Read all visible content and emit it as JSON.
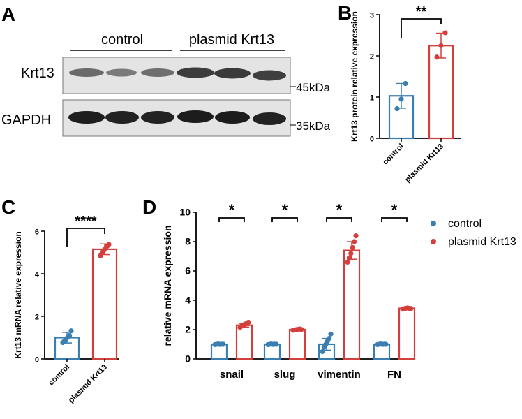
{
  "colors": {
    "control": "#3a7fb0",
    "plasmid": "#d33f3c",
    "axis": "#000000",
    "blot_bg": "#e4e4e4"
  },
  "panels": {
    "A": {
      "letter": "A"
    },
    "B": {
      "letter": "B"
    },
    "C": {
      "letter": "C"
    },
    "D": {
      "letter": "D"
    }
  },
  "western": {
    "group_labels": [
      "control",
      "plasmid Krt13"
    ],
    "rows": [
      {
        "label": "Krt13",
        "marker": "45kDa"
      },
      {
        "label": "GAPDH",
        "marker": "35kDa"
      }
    ]
  },
  "chart_data": [
    {
      "panel": "B",
      "type": "bar",
      "categories": [
        "control",
        "plasmid Krt13"
      ],
      "values": [
        1.03,
        2.25
      ],
      "sd": [
        0.3,
        0.3
      ],
      "points": [
        [
          0.72,
          0.95,
          1.33
        ],
        [
          1.97,
          2.25,
          2.56
        ]
      ],
      "ylabel": "Krt13 protein relative expression",
      "ylim": [
        0,
        3
      ],
      "yticks": [
        "0",
        "1",
        "2",
        "3"
      ],
      "significance": "**",
      "grid": false
    },
    {
      "panel": "C",
      "type": "bar",
      "categories": [
        "control",
        "plasmid Krt13"
      ],
      "values": [
        1.0,
        5.15
      ],
      "sd": [
        0.25,
        0.25
      ],
      "points": [
        [
          0.77,
          0.85,
          0.95,
          1.02,
          1.1,
          1.32
        ],
        [
          4.85,
          5.0,
          5.1,
          5.2,
          5.3,
          5.38
        ]
      ],
      "ylabel": "Krt13 mRNA relative expression",
      "ylim": [
        0,
        6
      ],
      "yticks": [
        "0",
        "2",
        "4",
        "6"
      ],
      "significance": "****",
      "grid": false
    },
    {
      "panel": "D",
      "type": "bar",
      "categories": [
        "snail",
        "slug",
        "vimentin",
        "FN"
      ],
      "series": [
        {
          "name": "control",
          "values": [
            1.0,
            1.0,
            1.0,
            1.0
          ],
          "sd": [
            0.05,
            0.05,
            0.4,
            0.05
          ],
          "points": [
            [
              0.98,
              1.0,
              1.02,
              0.99,
              1.01,
              1.0
            ],
            [
              0.98,
              1.0,
              1.02,
              0.99,
              1.01,
              1.0
            ],
            [
              0.5,
              0.8,
              1.0,
              1.2,
              1.4,
              1.7
            ],
            [
              0.98,
              1.0,
              1.02,
              0.99,
              1.01,
              1.0
            ]
          ]
        },
        {
          "name": "plasmid Krt13",
          "values": [
            2.3,
            2.0,
            7.4,
            3.45
          ],
          "sd": [
            0.12,
            0.05,
            0.6,
            0.05
          ],
          "points": [
            [
              2.15,
              2.25,
              2.32,
              2.38,
              2.42,
              2.5
            ],
            [
              1.96,
              1.98,
              2.0,
              2.02,
              2.04,
              2.01
            ],
            [
              6.6,
              6.9,
              7.2,
              7.6,
              8.0,
              8.4
            ],
            [
              3.4,
              3.43,
              3.46,
              3.48,
              3.45,
              3.44
            ]
          ]
        }
      ],
      "ylabel": "relative mRNA expression",
      "ylim": [
        0,
        10
      ],
      "yticks": [
        "0",
        "2",
        "4",
        "6",
        "8",
        "10"
      ],
      "significance": [
        "*",
        "*",
        "*",
        "*"
      ],
      "legend": "right",
      "grid": false
    }
  ]
}
